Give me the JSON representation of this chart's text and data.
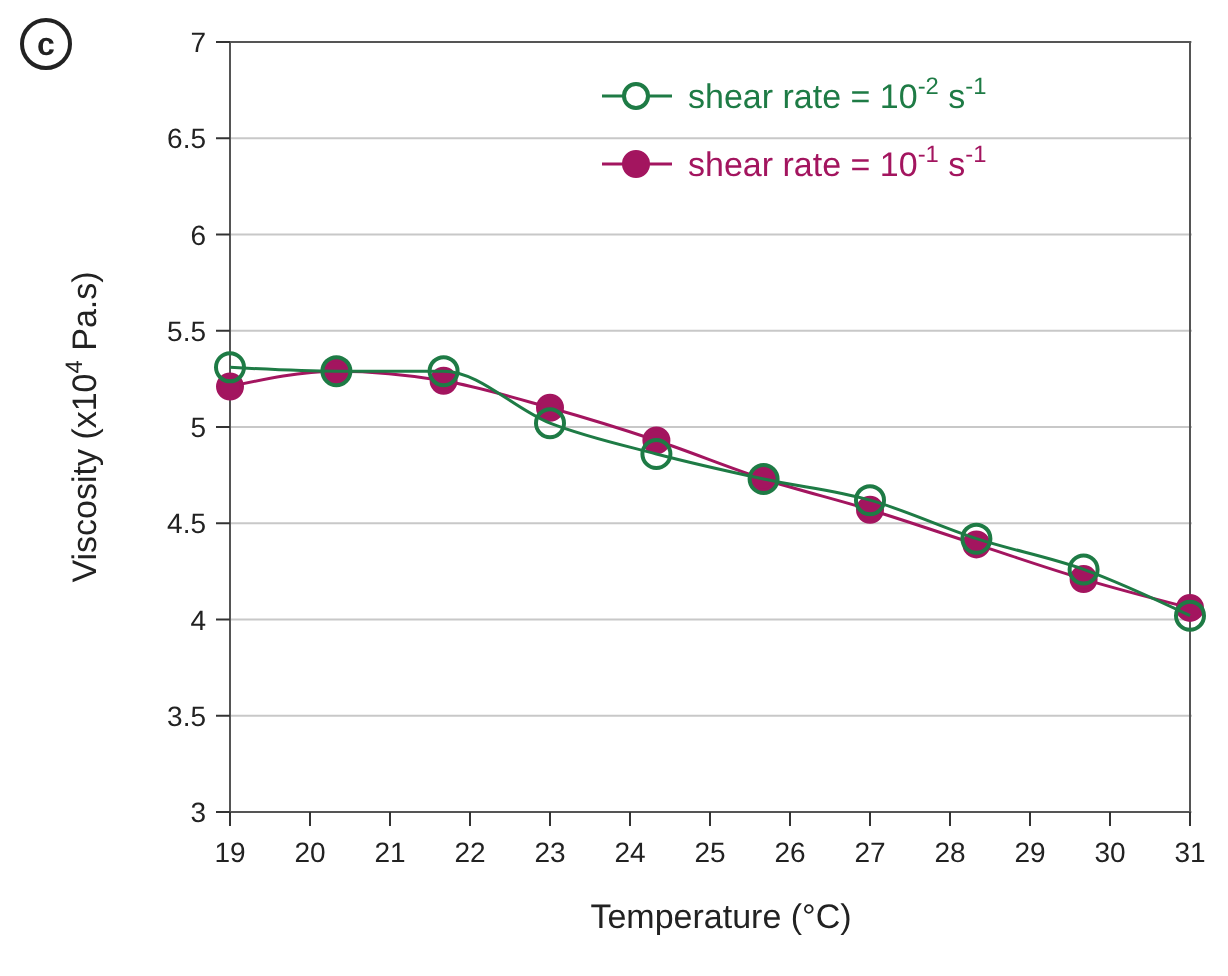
{
  "chart_data": {
    "type": "line",
    "xlabel": "Temperature (°C)",
    "ylabel": "Viscosity (x10$^{4}$ Pa.s)",
    "annotations": [
      "c"
    ],
    "x": [
      19,
      20.33,
      21.67,
      23,
      24.33,
      25.67,
      27,
      28.33,
      29.67,
      31
    ],
    "series": [
      {
        "name": "shear rate = 10$^{-2}$ s$^{-1}$",
        "color": "#1e7b45",
        "marker": "circle-open",
        "values": [
          5.31,
          5.29,
          5.29,
          5.02,
          4.86,
          4.73,
          4.62,
          4.42,
          4.26,
          4.02
        ]
      },
      {
        "name": "shear rate = 10$^{-1}$ s$^{-1}$",
        "color": "#a3155f",
        "marker": "circle",
        "values": [
          5.21,
          5.29,
          5.24,
          5.1,
          4.93,
          4.73,
          4.57,
          4.39,
          4.21,
          4.06
        ]
      }
    ],
    "xlim": [
      19,
      31
    ],
    "xticks": [
      19,
      20,
      21,
      22,
      23,
      24,
      25,
      26,
      27,
      28,
      29,
      30,
      31
    ],
    "ylim": [
      3,
      7
    ],
    "yticks": [
      3,
      3.5,
      4,
      4.5,
      5,
      5.5,
      6,
      6.5,
      7
    ],
    "grid": "y",
    "legend": "top right",
    "marker": "circle",
    "line_style": "solid"
  }
}
